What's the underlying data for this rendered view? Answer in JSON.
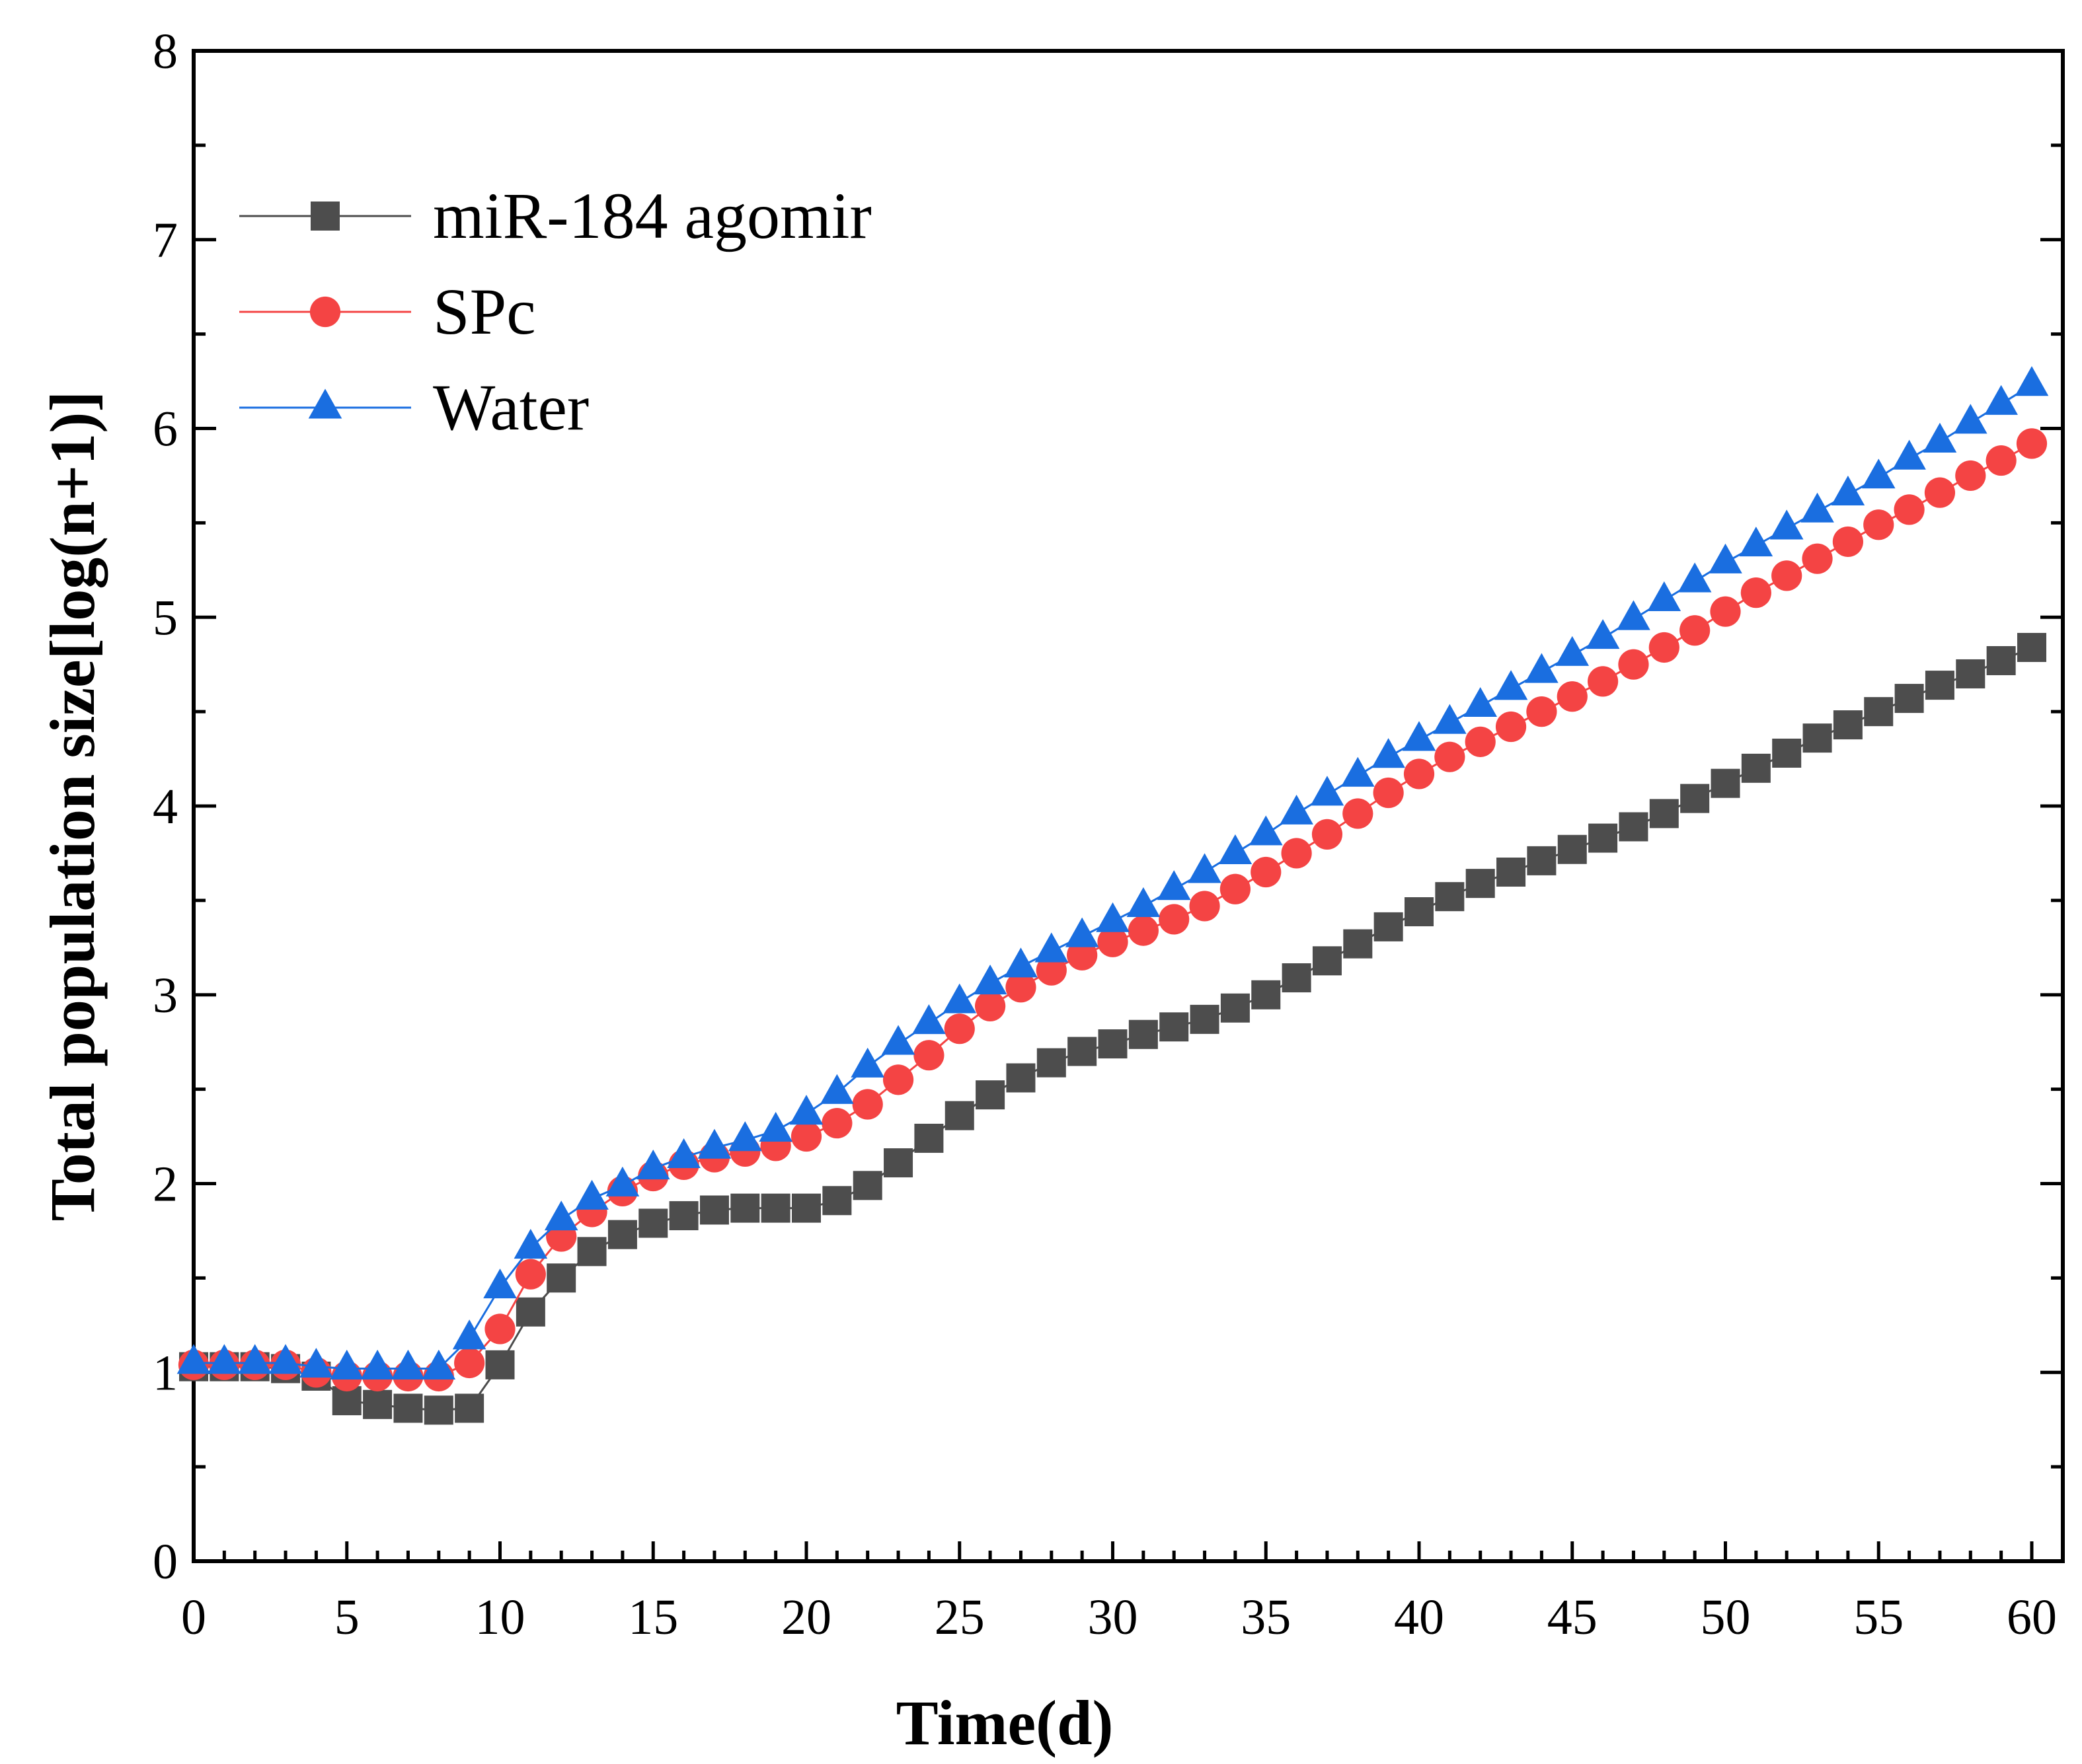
{
  "chart_data": {
    "type": "line",
    "title": "",
    "xlabel": "Time(d)",
    "ylabel": "Total population size[log(n+1)]",
    "xlim": [
      0,
      61
    ],
    "ylim": [
      0,
      8
    ],
    "xticks": [
      0,
      5,
      10,
      15,
      20,
      25,
      30,
      35,
      40,
      45,
      50,
      55,
      60
    ],
    "yticks": [
      0,
      1,
      2,
      3,
      4,
      5,
      6,
      7,
      8
    ],
    "grid": false,
    "legend_position": "top-left",
    "x": [
      0,
      1,
      2,
      3,
      4,
      5,
      6,
      7,
      8,
      9,
      10,
      11,
      12,
      13,
      14,
      15,
      16,
      17,
      18,
      19,
      20,
      21,
      22,
      23,
      24,
      25,
      26,
      27,
      28,
      29,
      30,
      31,
      32,
      33,
      34,
      35,
      36,
      37,
      38,
      39,
      40,
      41,
      42,
      43,
      44,
      45,
      46,
      47,
      48,
      49,
      50,
      51,
      52,
      53,
      54,
      55,
      56,
      57,
      58,
      59,
      60
    ],
    "series": [
      {
        "name": "miR-184 agomir",
        "marker": "square",
        "color": "#4d4d4d",
        "values": [
          1.03,
          1.03,
          1.03,
          1.02,
          0.98,
          0.85,
          0.83,
          0.81,
          0.8,
          0.81,
          1.04,
          1.32,
          1.5,
          1.64,
          1.73,
          1.79,
          1.83,
          1.86,
          1.87,
          1.87,
          1.87,
          1.91,
          1.99,
          2.11,
          2.24,
          2.36,
          2.47,
          2.56,
          2.64,
          2.7,
          2.74,
          2.79,
          2.83,
          2.87,
          2.93,
          3.0,
          3.09,
          3.18,
          3.27,
          3.36,
          3.44,
          3.52,
          3.59,
          3.65,
          3.71,
          3.77,
          3.83,
          3.89,
          3.96,
          4.04,
          4.12,
          4.2,
          4.28,
          4.36,
          4.43,
          4.5,
          4.57,
          4.64,
          4.7,
          4.77,
          4.84
        ]
      },
      {
        "name": "SPc",
        "marker": "circle",
        "color": "#f44444",
        "values": [
          1.04,
          1.04,
          1.04,
          1.04,
          1.0,
          0.98,
          0.98,
          0.98,
          0.98,
          1.05,
          1.23,
          1.52,
          1.72,
          1.85,
          1.96,
          2.04,
          2.1,
          2.14,
          2.17,
          2.2,
          2.25,
          2.32,
          2.42,
          2.55,
          2.68,
          2.82,
          2.94,
          3.04,
          3.13,
          3.21,
          3.28,
          3.34,
          3.4,
          3.47,
          3.56,
          3.65,
          3.75,
          3.85,
          3.96,
          4.07,
          4.17,
          4.26,
          4.34,
          4.42,
          4.5,
          4.58,
          4.66,
          4.75,
          4.84,
          4.93,
          5.03,
          5.13,
          5.22,
          5.31,
          5.4,
          5.49,
          5.57,
          5.66,
          5.75,
          5.83,
          5.92
        ]
      },
      {
        "name": "Water",
        "marker": "triangle",
        "color": "#1a6ee0",
        "values": [
          1.05,
          1.05,
          1.05,
          1.05,
          1.03,
          1.02,
          1.02,
          1.02,
          1.02,
          1.18,
          1.45,
          1.66,
          1.81,
          1.92,
          1.99,
          2.08,
          2.14,
          2.19,
          2.23,
          2.28,
          2.37,
          2.48,
          2.62,
          2.74,
          2.85,
          2.96,
          3.06,
          3.15,
          3.23,
          3.31,
          3.39,
          3.47,
          3.56,
          3.65,
          3.75,
          3.85,
          3.96,
          4.06,
          4.16,
          4.26,
          4.35,
          4.44,
          4.53,
          4.62,
          4.71,
          4.8,
          4.89,
          4.99,
          5.09,
          5.19,
          5.29,
          5.38,
          5.47,
          5.56,
          5.65,
          5.74,
          5.84,
          5.93,
          6.03,
          6.13,
          6.23
        ]
      }
    ]
  }
}
